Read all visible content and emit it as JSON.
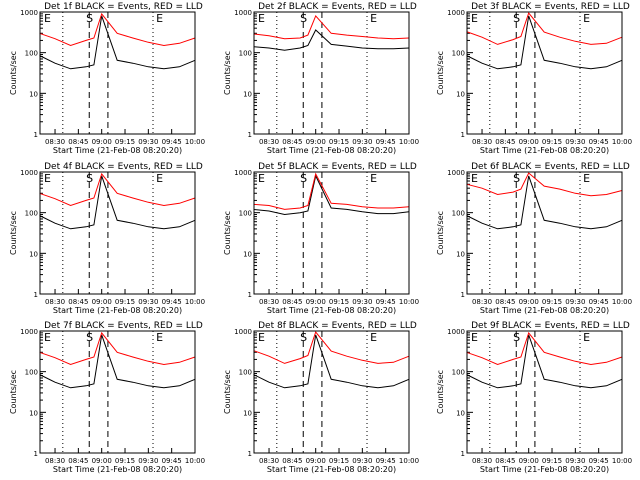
{
  "chart_data": [
    {
      "type": "line",
      "title": "Det 1f BLACK = Events, RED = LLD",
      "xlabel": "Start Time (21-Feb-08 08:20:20)",
      "ylabel": "Counts/sec",
      "yscale": "log",
      "ylim": [
        1,
        1000
      ],
      "y_tick_labels": [
        "1",
        "10",
        "100",
        "1000"
      ],
      "x_tick_labels": [
        "08:30",
        "08:45",
        "09:00",
        "09:15",
        "09:30",
        "09:45",
        "10:00"
      ],
      "region_labels": [
        "E",
        "S",
        "E"
      ],
      "grid": false,
      "legend": "none",
      "series": [
        {
          "color": "#000000",
          "x": [
            "08:20",
            "08:30",
            "08:40",
            "08:50",
            "08:55",
            "09:00",
            "09:10",
            "09:20",
            "09:30",
            "09:40",
            "09:50",
            "10:00"
          ],
          "y": [
            85,
            55,
            40,
            45,
            50,
            800,
            65,
            55,
            45,
            40,
            45,
            65
          ]
        },
        {
          "color": "#ff0000",
          "x": [
            "08:20",
            "08:30",
            "08:40",
            "08:50",
            "08:55",
            "09:00",
            "09:10",
            "09:20",
            "09:30",
            "09:40",
            "09:50",
            "10:00"
          ],
          "y": [
            300,
            220,
            150,
            200,
            230,
            900,
            300,
            230,
            180,
            150,
            170,
            230
          ]
        }
      ]
    },
    {
      "type": "line",
      "title": "Det 2f BLACK = Events, RED = LLD",
      "xlabel": "Start Time (21-Feb-08 08:20:20)",
      "ylabel": "Counts/sec",
      "yscale": "log",
      "ylim": [
        1,
        1000
      ],
      "y_tick_labels": [
        "1",
        "10",
        "100",
        "1000"
      ],
      "x_tick_labels": [
        "08:30",
        "08:45",
        "09:00",
        "09:15",
        "09:30",
        "09:45",
        "10:00"
      ],
      "region_labels": [
        "E",
        "S",
        "E"
      ],
      "grid": false,
      "legend": "none",
      "series": [
        {
          "color": "#000000",
          "x": [
            "08:20",
            "08:30",
            "08:40",
            "08:50",
            "08:55",
            "09:00",
            "09:10",
            "09:20",
            "09:30",
            "09:40",
            "09:50",
            "10:00"
          ],
          "y": [
            140,
            130,
            115,
            130,
            150,
            360,
            160,
            145,
            130,
            125,
            125,
            130
          ]
        },
        {
          "color": "#ff0000",
          "x": [
            "08:20",
            "08:30",
            "08:40",
            "08:50",
            "08:55",
            "09:00",
            "09:10",
            "09:20",
            "09:30",
            "09:40",
            "09:50",
            "10:00"
          ],
          "y": [
            290,
            260,
            220,
            230,
            270,
            800,
            300,
            270,
            250,
            230,
            220,
            230
          ]
        }
      ]
    },
    {
      "type": "line",
      "title": "Det 3f BLACK = Events, RED = LLD",
      "xlabel": "Start Time (21-Feb-08 08:20:20)",
      "ylabel": "Counts/sec",
      "yscale": "log",
      "ylim": [
        1,
        1000
      ],
      "y_tick_labels": [
        "1",
        "10",
        "100",
        "1000"
      ],
      "x_tick_labels": [
        "08:30",
        "08:45",
        "09:00",
        "09:15",
        "09:30",
        "09:45",
        "10:00"
      ],
      "region_labels": [
        "E",
        "S",
        "E"
      ],
      "grid": false,
      "legend": "none",
      "series": [
        {
          "color": "#000000",
          "x": [
            "08:20",
            "08:30",
            "08:40",
            "08:50",
            "08:55",
            "09:00",
            "09:10",
            "09:20",
            "09:30",
            "09:40",
            "09:50",
            "10:00"
          ],
          "y": [
            85,
            55,
            40,
            45,
            50,
            800,
            65,
            55,
            45,
            40,
            45,
            65
          ]
        },
        {
          "color": "#ff0000",
          "x": [
            "08:20",
            "08:30",
            "08:40",
            "08:50",
            "08:55",
            "09:00",
            "09:10",
            "09:20",
            "09:30",
            "09:40",
            "09:50",
            "10:00"
          ],
          "y": [
            330,
            240,
            160,
            210,
            250,
            950,
            320,
            240,
            190,
            160,
            170,
            240
          ]
        }
      ]
    },
    {
      "type": "line",
      "title": "Det 4f BLACK = Events, RED = LLD",
      "xlabel": "Start Time (21-Feb-08 08:20:20)",
      "ylabel": "Counts/sec",
      "yscale": "log",
      "ylim": [
        1,
        1000
      ],
      "y_tick_labels": [
        "1",
        "10",
        "100",
        "1000"
      ],
      "x_tick_labels": [
        "08:30",
        "08:45",
        "09:00",
        "09:15",
        "09:30",
        "09:45",
        "10:00"
      ],
      "region_labels": [
        "E",
        "S",
        "E"
      ],
      "grid": false,
      "legend": "none",
      "series": [
        {
          "color": "#000000",
          "x": [
            "08:20",
            "08:30",
            "08:40",
            "08:50",
            "08:55",
            "09:00",
            "09:10",
            "09:20",
            "09:30",
            "09:40",
            "09:50",
            "10:00"
          ],
          "y": [
            85,
            55,
            40,
            45,
            50,
            800,
            65,
            55,
            45,
            40,
            45,
            65
          ]
        },
        {
          "color": "#ff0000",
          "x": [
            "08:20",
            "08:30",
            "08:40",
            "08:50",
            "08:55",
            "09:00",
            "09:10",
            "09:20",
            "09:30",
            "09:40",
            "09:50",
            "10:00"
          ],
          "y": [
            300,
            220,
            150,
            200,
            230,
            900,
            300,
            230,
            180,
            150,
            170,
            230
          ]
        }
      ]
    },
    {
      "type": "line",
      "title": "Det 5f BLACK = Events, RED = LLD",
      "xlabel": "Start Time (21-Feb-08 08:20:20)",
      "ylabel": "Counts/sec",
      "yscale": "log",
      "ylim": [
        1,
        1000
      ],
      "y_tick_labels": [
        "1",
        "10",
        "100",
        "1000"
      ],
      "x_tick_labels": [
        "08:30",
        "08:45",
        "09:00",
        "09:15",
        "09:30",
        "09:45",
        "10:00"
      ],
      "region_labels": [
        "E",
        "S",
        "E"
      ],
      "grid": false,
      "legend": "none",
      "series": [
        {
          "color": "#000000",
          "x": [
            "08:20",
            "08:30",
            "08:40",
            "08:50",
            "08:55",
            "09:00",
            "09:10",
            "09:20",
            "09:30",
            "09:40",
            "09:50",
            "10:00"
          ],
          "y": [
            120,
            110,
            90,
            100,
            110,
            800,
            130,
            120,
            105,
            95,
            95,
            105
          ]
        },
        {
          "color": "#ff0000",
          "x": [
            "08:20",
            "08:30",
            "08:40",
            "08:50",
            "08:55",
            "09:00",
            "09:10",
            "09:20",
            "09:30",
            "09:40",
            "09:50",
            "10:00"
          ],
          "y": [
            160,
            150,
            120,
            130,
            150,
            900,
            170,
            160,
            140,
            130,
            130,
            140
          ]
        }
      ]
    },
    {
      "type": "line",
      "title": "Det 6f BLACK = Events, RED = LLD",
      "xlabel": "Start Time (21-Feb-08 08:20:20)",
      "ylabel": "Counts/sec",
      "yscale": "log",
      "ylim": [
        1,
        1000
      ],
      "y_tick_labels": [
        "1",
        "10",
        "100",
        "1000"
      ],
      "x_tick_labels": [
        "08:30",
        "08:45",
        "09:00",
        "09:15",
        "09:30",
        "09:45",
        "10:00"
      ],
      "region_labels": [
        "E",
        "S",
        "E"
      ],
      "grid": false,
      "legend": "none",
      "series": [
        {
          "color": "#000000",
          "x": [
            "08:20",
            "08:30",
            "08:40",
            "08:50",
            "08:55",
            "09:00",
            "09:10",
            "09:20",
            "09:30",
            "09:40",
            "09:50",
            "10:00"
          ],
          "y": [
            85,
            55,
            40,
            45,
            50,
            800,
            65,
            55,
            45,
            40,
            45,
            65
          ]
        },
        {
          "color": "#ff0000",
          "x": [
            "08:20",
            "08:30",
            "08:40",
            "08:50",
            "08:55",
            "09:00",
            "09:10",
            "09:20",
            "09:30",
            "09:40",
            "09:50",
            "10:00"
          ],
          "y": [
            500,
            400,
            280,
            320,
            380,
            1000,
            450,
            380,
            300,
            260,
            280,
            350
          ]
        }
      ]
    },
    {
      "type": "line",
      "title": "Det 7f BLACK = Events, RED = LLD",
      "xlabel": "Start Time (21-Feb-08 08:20:20)",
      "ylabel": "Counts/sec",
      "yscale": "log",
      "ylim": [
        1,
        1000
      ],
      "y_tick_labels": [
        "1",
        "10",
        "100",
        "1000"
      ],
      "x_tick_labels": [
        "08:30",
        "08:45",
        "09:00",
        "09:15",
        "09:30",
        "09:45",
        "10:00"
      ],
      "region_labels": [
        "E",
        "S",
        "E"
      ],
      "grid": false,
      "legend": "none",
      "series": [
        {
          "color": "#000000",
          "x": [
            "08:20",
            "08:30",
            "08:40",
            "08:50",
            "08:55",
            "09:00",
            "09:10",
            "09:20",
            "09:30",
            "09:40",
            "09:50",
            "10:00"
          ],
          "y": [
            85,
            55,
            40,
            45,
            50,
            800,
            65,
            55,
            45,
            40,
            45,
            65
          ]
        },
        {
          "color": "#ff0000",
          "x": [
            "08:20",
            "08:30",
            "08:40",
            "08:50",
            "08:55",
            "09:00",
            "09:10",
            "09:20",
            "09:30",
            "09:40",
            "09:50",
            "10:00"
          ],
          "y": [
            300,
            220,
            150,
            200,
            230,
            900,
            300,
            230,
            180,
            150,
            170,
            230
          ]
        }
      ]
    },
    {
      "type": "line",
      "title": "Det 8f BLACK = Events, RED = LLD",
      "xlabel": "Start Time (21-Feb-08 08:20:20)",
      "ylabel": "Counts/sec",
      "yscale": "log",
      "ylim": [
        1,
        1000
      ],
      "y_tick_labels": [
        "1",
        "10",
        "100",
        "1000"
      ],
      "x_tick_labels": [
        "08:30",
        "08:45",
        "09:00",
        "09:15",
        "09:30",
        "09:45",
        "10:00"
      ],
      "region_labels": [
        "E",
        "S",
        "E"
      ],
      "grid": false,
      "legend": "none",
      "series": [
        {
          "color": "#000000",
          "x": [
            "08:20",
            "08:30",
            "08:40",
            "08:50",
            "08:55",
            "09:00",
            "09:10",
            "09:20",
            "09:30",
            "09:40",
            "09:50",
            "10:00"
          ],
          "y": [
            85,
            55,
            40,
            45,
            50,
            800,
            65,
            55,
            45,
            40,
            45,
            65
          ]
        },
        {
          "color": "#ff0000",
          "x": [
            "08:20",
            "08:30",
            "08:40",
            "08:50",
            "08:55",
            "09:00",
            "09:10",
            "09:20",
            "09:30",
            "09:40",
            "09:50",
            "10:00"
          ],
          "y": [
            330,
            240,
            160,
            210,
            250,
            950,
            320,
            240,
            190,
            160,
            170,
            240
          ]
        }
      ]
    },
    {
      "type": "line",
      "title": "Det 9f BLACK = Events, RED = LLD",
      "xlabel": "Start Time (21-Feb-08 08:20:20)",
      "ylabel": "Counts/sec",
      "yscale": "log",
      "ylim": [
        1,
        1000
      ],
      "y_tick_labels": [
        "1",
        "10",
        "100",
        "1000"
      ],
      "x_tick_labels": [
        "08:30",
        "08:45",
        "09:00",
        "09:15",
        "09:30",
        "09:45",
        "10:00"
      ],
      "region_labels": [
        "E",
        "S",
        "E"
      ],
      "grid": false,
      "legend": "none",
      "series": [
        {
          "color": "#000000",
          "x": [
            "08:20",
            "08:30",
            "08:40",
            "08:50",
            "08:55",
            "09:00",
            "09:10",
            "09:20",
            "09:30",
            "09:40",
            "09:50",
            "10:00"
          ],
          "y": [
            85,
            55,
            40,
            45,
            50,
            800,
            65,
            55,
            45,
            40,
            45,
            65
          ]
        },
        {
          "color": "#ff0000",
          "x": [
            "08:20",
            "08:30",
            "08:40",
            "08:50",
            "08:55",
            "09:00",
            "09:10",
            "09:20",
            "09:30",
            "09:40",
            "09:50",
            "10:00"
          ],
          "y": [
            300,
            220,
            150,
            200,
            230,
            900,
            300,
            230,
            180,
            150,
            170,
            230
          ]
        }
      ]
    }
  ]
}
